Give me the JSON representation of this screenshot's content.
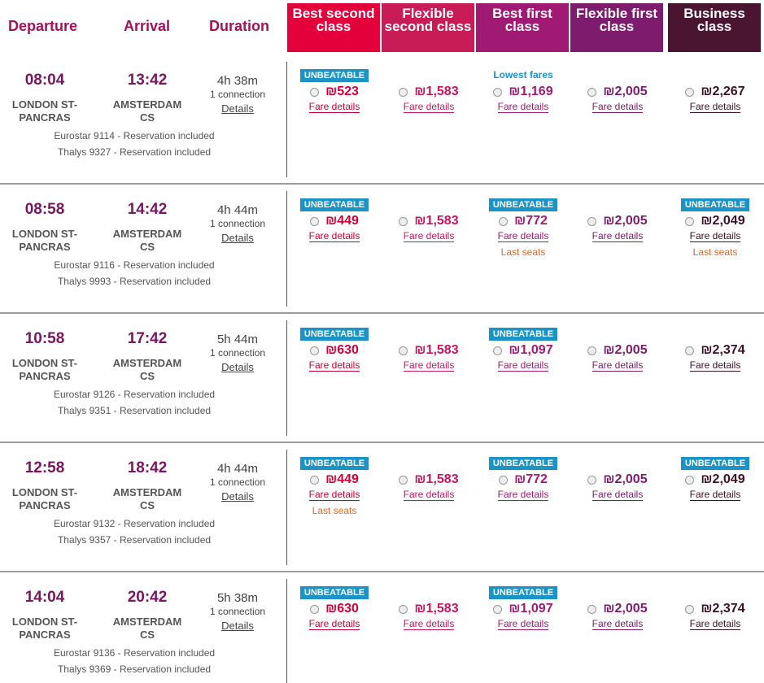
{
  "headers": {
    "departure": "Departure",
    "arrival": "Arrival",
    "duration": "Duration"
  },
  "classes": [
    {
      "label": "Best second class",
      "color": "#e4003a",
      "price_color": "#d0003a",
      "fare_color": "#c80033"
    },
    {
      "label": "Flexible second class",
      "color": "#c81c56",
      "price_color": "#c8155e",
      "fare_color": "#c8155e"
    },
    {
      "label": "Best first class",
      "color": "#a01a74",
      "price_color": "#a01a74",
      "fare_color": "#a01a74"
    },
    {
      "label": "Flexible first class",
      "color": "#7d1b6c",
      "price_color": "#7d1b6c",
      "fare_color": "#7d1b6c"
    },
    {
      "label": "Business class",
      "color": "#4a1531",
      "price_color": "#3d1126",
      "fare_color": "#3d1126"
    }
  ],
  "labels": {
    "unbeatable": "UNBEATABLE",
    "fare_details": "Fare details",
    "last_seats": "Last seats",
    "lowest_fares": "Lowest fares",
    "details": "Details",
    "connection": "1 connection"
  },
  "journeys": [
    {
      "departure_time": "08:04",
      "arrival_time": "13:42",
      "departure_station": "LONDON ST-PANCRAS",
      "arrival_station": "AMSTERDAM CS",
      "duration": "4h 38m",
      "trains": [
        "Eurostar 9114 - Reservation included",
        "Thalys 9327 - Reservation included"
      ],
      "fares": [
        {
          "price": "₪523",
          "unbeatable": true,
          "last_seats": false
        },
        {
          "price": "₪1,583",
          "unbeatable": false,
          "last_seats": false
        },
        {
          "price": "₪1,169",
          "unbeatable": false,
          "last_seats": false,
          "lowest": true
        },
        {
          "price": "₪2,005",
          "unbeatable": false,
          "last_seats": false
        },
        {
          "price": "₪2,267",
          "unbeatable": false,
          "last_seats": false
        }
      ]
    },
    {
      "departure_time": "08:58",
      "arrival_time": "14:42",
      "departure_station": "LONDON ST-PANCRAS",
      "arrival_station": "AMSTERDAM CS",
      "duration": "4h 44m",
      "trains": [
        "Eurostar 9116 - Reservation included",
        "Thalys 9993 - Reservation included"
      ],
      "fares": [
        {
          "price": "₪449",
          "unbeatable": true,
          "last_seats": false
        },
        {
          "price": "₪1,583",
          "unbeatable": false,
          "last_seats": false
        },
        {
          "price": "₪772",
          "unbeatable": true,
          "last_seats": true
        },
        {
          "price": "₪2,005",
          "unbeatable": false,
          "last_seats": false
        },
        {
          "price": "₪2,049",
          "unbeatable": true,
          "last_seats": true
        }
      ]
    },
    {
      "departure_time": "10:58",
      "arrival_time": "17:42",
      "departure_station": "LONDON ST-PANCRAS",
      "arrival_station": "AMSTERDAM CS",
      "duration": "5h 44m",
      "trains": [
        "Eurostar 9126 - Reservation included",
        "Thalys 9351 - Reservation included"
      ],
      "fares": [
        {
          "price": "₪630",
          "unbeatable": true,
          "last_seats": false
        },
        {
          "price": "₪1,583",
          "unbeatable": false,
          "last_seats": false
        },
        {
          "price": "₪1,097",
          "unbeatable": true,
          "last_seats": false
        },
        {
          "price": "₪2,005",
          "unbeatable": false,
          "last_seats": false
        },
        {
          "price": "₪2,374",
          "unbeatable": false,
          "last_seats": false
        }
      ]
    },
    {
      "departure_time": "12:58",
      "arrival_time": "18:42",
      "departure_station": "LONDON ST-PANCRAS",
      "arrival_station": "AMSTERDAM CS",
      "duration": "4h 44m",
      "trains": [
        "Eurostar 9132 - Reservation included",
        "Thalys 9357 - Reservation included"
      ],
      "fares": [
        {
          "price": "₪449",
          "unbeatable": true,
          "last_seats": true
        },
        {
          "price": "₪1,583",
          "unbeatable": false,
          "last_seats": false
        },
        {
          "price": "₪772",
          "unbeatable": true,
          "last_seats": false
        },
        {
          "price": "₪2,005",
          "unbeatable": false,
          "last_seats": false
        },
        {
          "price": "₪2,049",
          "unbeatable": true,
          "last_seats": false
        }
      ]
    },
    {
      "departure_time": "14:04",
      "arrival_time": "20:42",
      "departure_station": "LONDON ST-PANCRAS",
      "arrival_station": "AMSTERDAM CS",
      "duration": "5h 38m",
      "trains": [
        "Eurostar 9136 - Reservation included",
        "Thalys 9369 - Reservation included"
      ],
      "fares": [
        {
          "price": "₪630",
          "unbeatable": true,
          "last_seats": false
        },
        {
          "price": "₪1,583",
          "unbeatable": false,
          "last_seats": false
        },
        {
          "price": "₪1,097",
          "unbeatable": true,
          "last_seats": false
        },
        {
          "price": "₪2,005",
          "unbeatable": false,
          "last_seats": false
        },
        {
          "price": "₪2,374",
          "unbeatable": false,
          "last_seats": false
        }
      ]
    }
  ]
}
